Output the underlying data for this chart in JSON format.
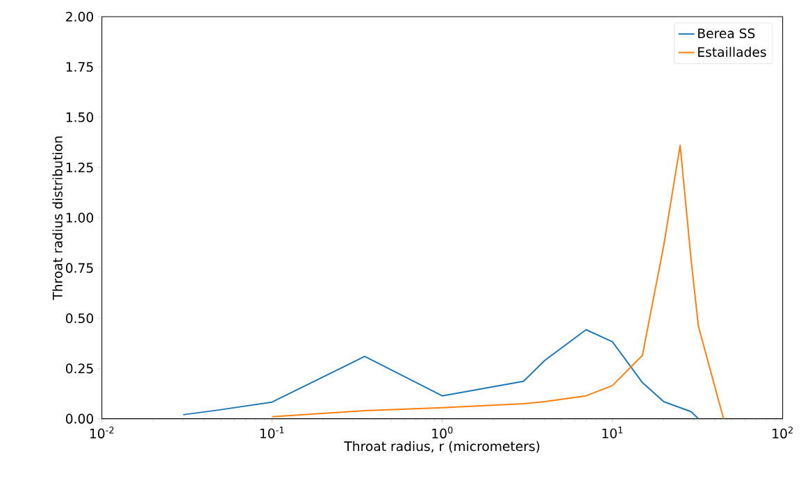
{
  "chart_data": {
    "type": "line",
    "xlabel": "Throat radius, r (micrometers)",
    "ylabel": "Throat radius distribution",
    "log": "x",
    "xlim": [
      0.01,
      100
    ],
    "xticks": [
      {
        "value": 0.01,
        "label": "10$^{-2}$"
      },
      {
        "value": 0.1,
        "label": "10$^{-1}$"
      },
      {
        "value": 1,
        "label": "10$^{0}$"
      },
      {
        "value": 10,
        "label": "10$^{1}$"
      },
      {
        "value": 100,
        "label": "10$^{2}$"
      }
    ],
    "ylim": [
      0,
      2
    ],
    "yticks": [
      {
        "value": 0,
        "label": "0.00"
      },
      {
        "value": 0.25,
        "label": "0.25"
      },
      {
        "value": 0.5,
        "label": "0.50"
      },
      {
        "value": 0.75,
        "label": "0.75"
      },
      {
        "value": 1,
        "label": "1.00"
      },
      {
        "value": 1.25,
        "label": "1.25"
      },
      {
        "value": 1.5,
        "label": "1.50"
      },
      {
        "value": 1.75,
        "label": "1.75"
      },
      {
        "value": 2,
        "label": "2.00"
      }
    ],
    "grid": false,
    "legend": "top right",
    "marker": "none",
    "line_style": "solid",
    "series": [
      {
        "name": "Berea SS",
        "color": "#1f77b4",
        "x": [
          0.03,
          0.05,
          0.1,
          0.35,
          1,
          3,
          4,
          7,
          10,
          15,
          20,
          29,
          32
        ],
        "values": [
          0.02,
          0.045,
          0.083,
          0.31,
          0.114,
          0.186,
          0.29,
          0.443,
          0.383,
          0.18,
          0.085,
          0.035,
          0
        ]
      },
      {
        "name": "Estaillades",
        "color": "#ff7f0e",
        "x": [
          0.1,
          0.35,
          1,
          3,
          4,
          7,
          10,
          15,
          20,
          25,
          29,
          32,
          45
        ],
        "values": [
          0.01,
          0.04,
          0.055,
          0.075,
          0.085,
          0.114,
          0.165,
          0.315,
          0.86,
          1.36,
          0.79,
          0.46,
          0
        ]
      }
    ]
  }
}
